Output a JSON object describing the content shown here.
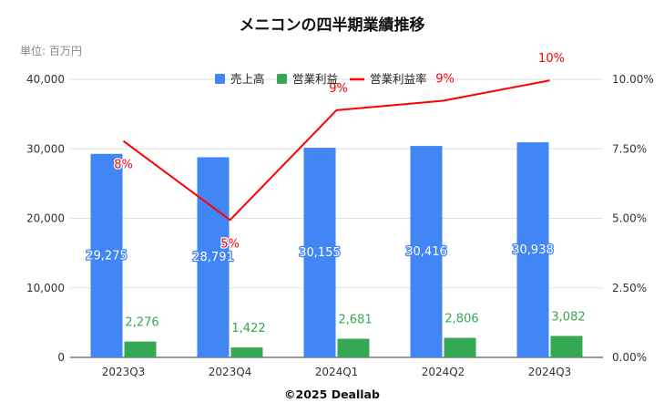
{
  "title": "メニコンの四半期業績推移",
  "unit_label": "単位: 百万円",
  "copyright": "©2025 Deallab",
  "colors": {
    "revenue": "#4285f4",
    "operating_profit": "#34a853",
    "operating_margin": "#ff0000",
    "grid": "#e2e2e2"
  },
  "chart_data": {
    "type": "bar",
    "categories": [
      "2023Q3",
      "2023Q4",
      "2024Q1",
      "2024Q2",
      "2024Q3"
    ],
    "series": [
      {
        "name": "売上高",
        "type": "bar",
        "axis": "left",
        "values": [
          29275,
          28791,
          30155,
          30416,
          30938
        ],
        "labels": [
          "29,275",
          "28,791",
          "30,155",
          "30,416",
          "30,938"
        ]
      },
      {
        "name": "営業利益",
        "type": "bar",
        "axis": "left",
        "values": [
          2276,
          1422,
          2681,
          2806,
          3082
        ],
        "labels": [
          "2,276",
          "1,422",
          "2,681",
          "2,806",
          "3,082"
        ]
      },
      {
        "name": "営業利益率",
        "type": "line",
        "axis": "right",
        "values": [
          7.78,
          4.94,
          8.89,
          9.23,
          9.96
        ],
        "labels": [
          "8%",
          "5%",
          "9%",
          "9%",
          "10%"
        ]
      }
    ],
    "y_left": {
      "min": 0,
      "max": 40000,
      "ticks": [
        0,
        10000,
        20000,
        30000,
        40000
      ],
      "tick_labels": [
        "0",
        "10,000",
        "20,000",
        "30,000",
        "40,000"
      ]
    },
    "y_right": {
      "min": 0,
      "max": 10,
      "ticks": [
        0,
        2.5,
        5,
        7.5,
        10
      ],
      "tick_labels": [
        "0.00%",
        "2.50%",
        "5.00%",
        "7.50%",
        "10.00%"
      ]
    },
    "grid": true,
    "legend_position": "top-center"
  }
}
